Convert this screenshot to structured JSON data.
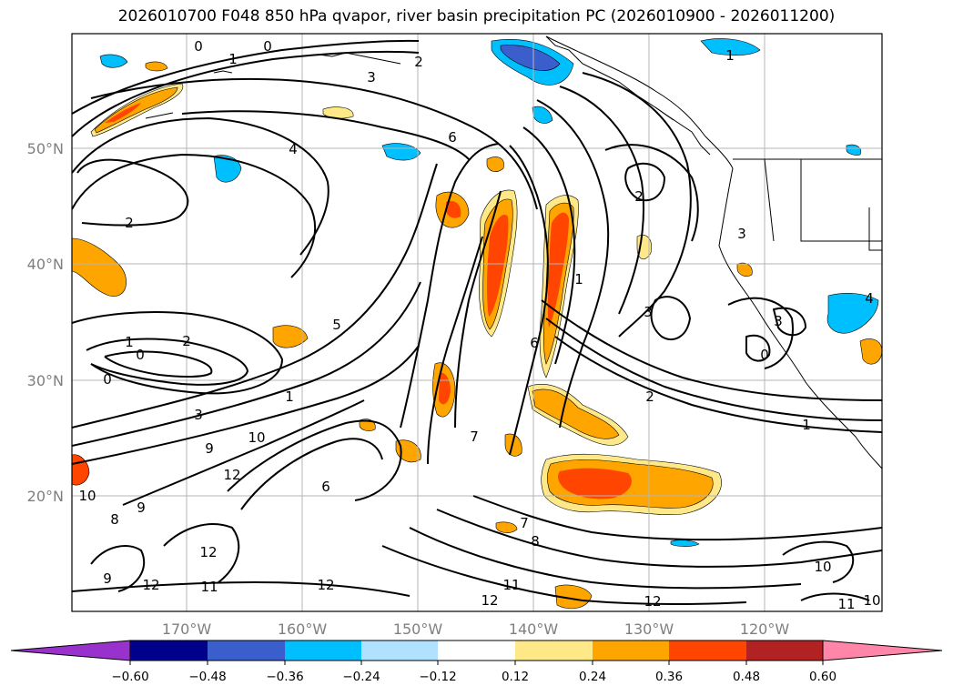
{
  "title": "2026010700 F048 850 hPa qvapor, river basin precipitation PC (2026010900 - 2026011200)",
  "map": {
    "lat_labels": [
      "50°N",
      "40°N",
      "30°N",
      "20°N"
    ],
    "lon_labels": [
      "170°W",
      "160°W",
      "150°W",
      "140°W",
      "130°W",
      "120°W"
    ],
    "contour_labels": [
      {
        "text": "0"
      },
      {
        "text": "0"
      },
      {
        "text": "1"
      },
      {
        "text": "2"
      },
      {
        "text": "3"
      },
      {
        "text": "1"
      },
      {
        "text": "6"
      },
      {
        "text": "4"
      },
      {
        "text": "2"
      },
      {
        "text": "2"
      },
      {
        "text": "3"
      },
      {
        "text": "1"
      },
      {
        "text": "3"
      },
      {
        "text": "6"
      },
      {
        "text": "5"
      },
      {
        "text": "1"
      },
      {
        "text": "2"
      },
      {
        "text": "1"
      },
      {
        "text": "0"
      },
      {
        "text": "0"
      },
      {
        "text": "3"
      },
      {
        "text": "9"
      },
      {
        "text": "10"
      },
      {
        "text": "12"
      },
      {
        "text": "10"
      },
      {
        "text": "8"
      },
      {
        "text": "9"
      },
      {
        "text": "12"
      },
      {
        "text": "11"
      },
      {
        "text": "12"
      },
      {
        "text": "9"
      },
      {
        "text": "12"
      },
      {
        "text": "6"
      },
      {
        "text": "7"
      },
      {
        "text": "7"
      },
      {
        "text": "8"
      },
      {
        "text": "11"
      },
      {
        "text": "12"
      },
      {
        "text": "12"
      },
      {
        "text": "10"
      },
      {
        "text": "11"
      },
      {
        "text": "10"
      },
      {
        "text": "2"
      },
      {
        "text": "1"
      },
      {
        "text": "4"
      },
      {
        "text": "0"
      },
      {
        "text": "3"
      }
    ]
  },
  "colorbar": {
    "ticks": [
      "−0.60",
      "−0.48",
      "−0.36",
      "−0.24",
      "−0.12",
      "0.12",
      "0.24",
      "0.36",
      "0.48",
      "0.60"
    ],
    "colors": [
      "#9932cc",
      "#00008b",
      "#3a5fcd",
      "#00bfff",
      "#b0e2ff",
      "#ffffff",
      "#ffe887",
      "#ffa500",
      "#ff4500",
      "#b22222",
      "#ff86a8"
    ]
  }
}
